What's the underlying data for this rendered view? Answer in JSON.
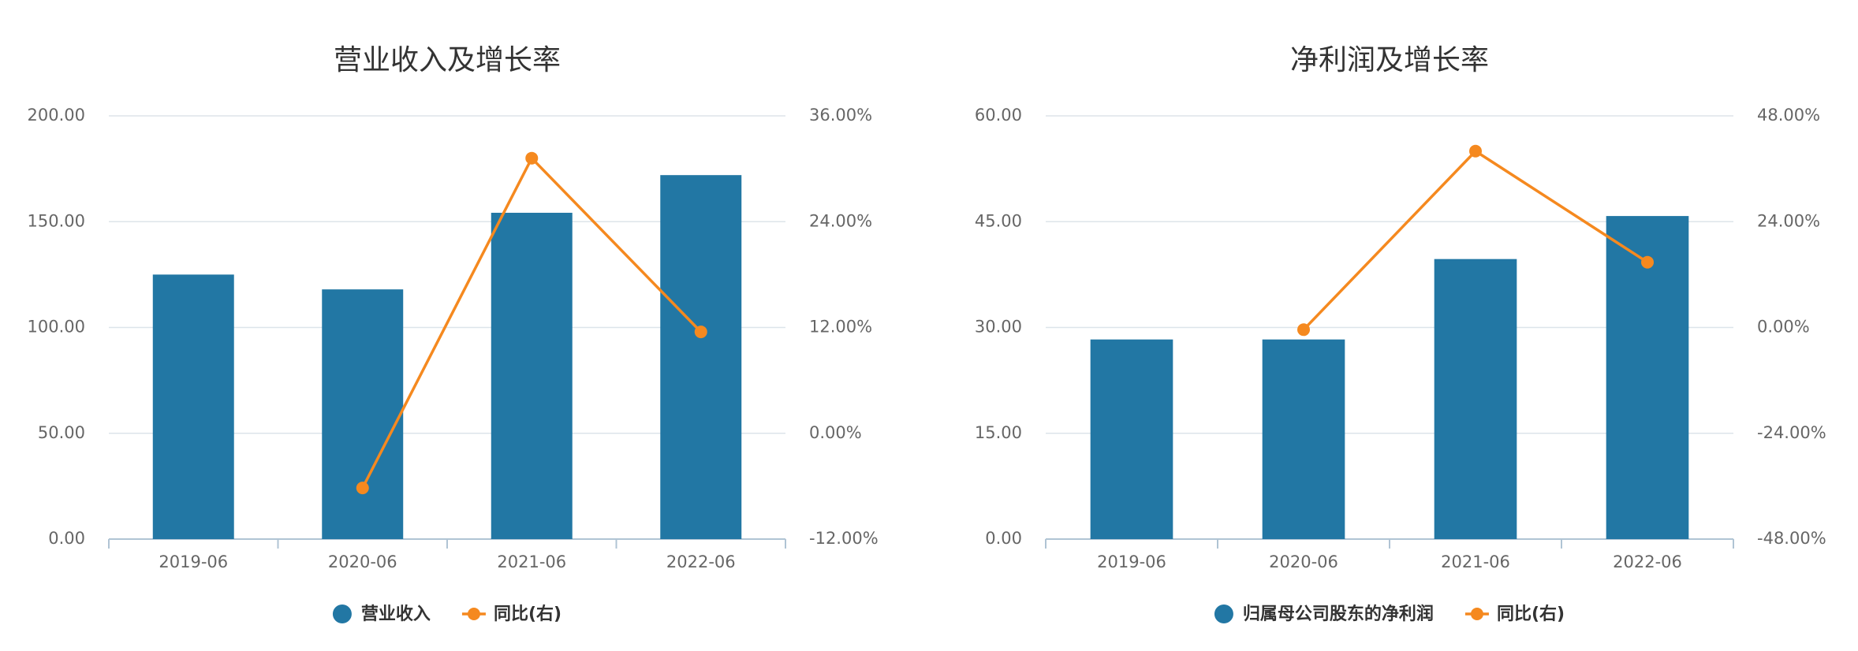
{
  "chart_data": [
    {
      "type": "bar",
      "title": "营业收入及增长率",
      "categories": [
        "2019-06",
        "2020-06",
        "2021-06",
        "2022-06"
      ],
      "series": [
        {
          "name": "营业收入",
          "color": "#2277a4",
          "type": "bar",
          "values": [
            125,
            118,
            154.2,
            172
          ]
        },
        {
          "name": "同比(右)",
          "color": "#f5891f",
          "type": "line",
          "axis": "y2",
          "values": [
            null,
            -6.2,
            31.2,
            11.5
          ]
        }
      ],
      "ylim": [
        0,
        200
      ],
      "yticks": [
        {
          "value": 0,
          "label": "0.00"
        },
        {
          "value": 50,
          "label": "50.00"
        },
        {
          "value": 100,
          "label": "100.00"
        },
        {
          "value": 150,
          "label": "150.00"
        },
        {
          "value": 200,
          "label": "200.00"
        }
      ],
      "y2lim": [
        -12,
        36
      ],
      "y2ticks": [
        {
          "value": -12,
          "label": "-12.00%"
        },
        {
          "value": 0,
          "label": "0.00%"
        },
        {
          "value": 12,
          "label": "12.00%"
        },
        {
          "value": 24,
          "label": "24.00%"
        },
        {
          "value": 36,
          "label": "36.00%"
        }
      ],
      "grid": true
    },
    {
      "type": "bar",
      "title": "净利润及增长率",
      "categories": [
        "2019-06",
        "2020-06",
        "2021-06",
        "2022-06"
      ],
      "series": [
        {
          "name": "归属母公司股东的净利润",
          "color": "#2277a4",
          "type": "bar",
          "values": [
            28.3,
            28.3,
            39.7,
            45.8
          ]
        },
        {
          "name": "同比(右)",
          "color": "#f5891f",
          "type": "line",
          "axis": "y2",
          "values": [
            null,
            -0.5,
            40,
            14.8
          ]
        }
      ],
      "ylim": [
        0,
        60
      ],
      "yticks": [
        {
          "value": 0,
          "label": "0.00"
        },
        {
          "value": 15,
          "label": "15.00"
        },
        {
          "value": 30,
          "label": "30.00"
        },
        {
          "value": 45,
          "label": "45.00"
        },
        {
          "value": 60,
          "label": "60.00"
        }
      ],
      "y2lim": [
        -48,
        48
      ],
      "y2ticks": [
        {
          "value": -48,
          "label": "-48.00%"
        },
        {
          "value": -24,
          "label": "-24.00%"
        },
        {
          "value": 0,
          "label": "0.00%"
        },
        {
          "value": 24,
          "label": "24.00%"
        },
        {
          "value": 48,
          "label": "48.00%"
        }
      ],
      "grid": true
    }
  ]
}
